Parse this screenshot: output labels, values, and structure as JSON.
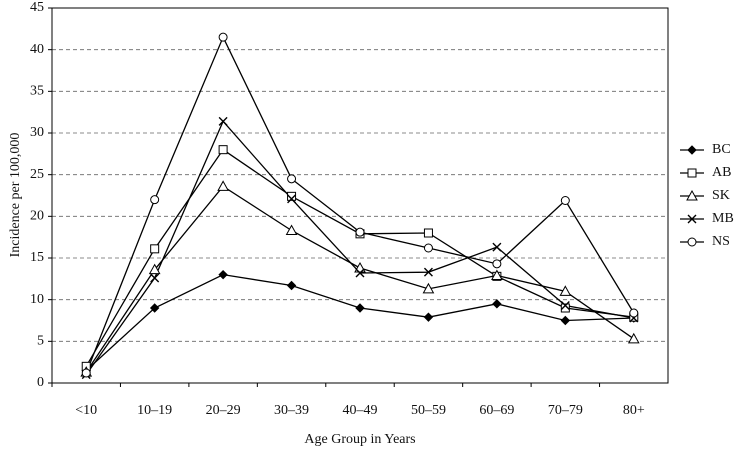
{
  "chart_data": {
    "type": "line",
    "x_label": "Age Group in Years",
    "y_label": "Incidence per 100,000",
    "categories": [
      "<10",
      "10–19",
      "20–29",
      "30–39",
      "40–49",
      "50–59",
      "60–69",
      "70–79",
      "80+"
    ],
    "ylim": [
      0,
      45
    ],
    "yticks": [
      0,
      5,
      10,
      15,
      20,
      25,
      30,
      35,
      40,
      45
    ],
    "grid": true,
    "legend": "right",
    "series": [
      {
        "name": "BC",
        "color": "#000000",
        "marker": "diamond",
        "values": [
          1.5,
          9,
          13,
          11.7,
          9,
          7.9,
          9.5,
          7.5,
          7.8
        ]
      },
      {
        "name": "AB",
        "color": "#000000",
        "marker": "square",
        "values": [
          2,
          16.1,
          28,
          22.4,
          17.9,
          18,
          12.8,
          9,
          7.9
        ]
      },
      {
        "name": "SK",
        "color": "#000000",
        "marker": "triangle",
        "values": [
          1.3,
          13.6,
          23.6,
          18.3,
          13.8,
          11.3,
          12.9,
          11,
          5.3
        ]
      },
      {
        "name": "MB",
        "color": "#000000",
        "marker": "cross",
        "values": [
          1,
          12.6,
          31.4,
          22.1,
          13.2,
          13.3,
          16.3,
          9.3,
          7.8
        ]
      },
      {
        "name": "NS",
        "color": "#000000",
        "marker": "circle",
        "values": [
          1.2,
          22,
          41.5,
          24.5,
          18.1,
          16.2,
          14.3,
          21.9,
          8.4
        ]
      }
    ]
  }
}
